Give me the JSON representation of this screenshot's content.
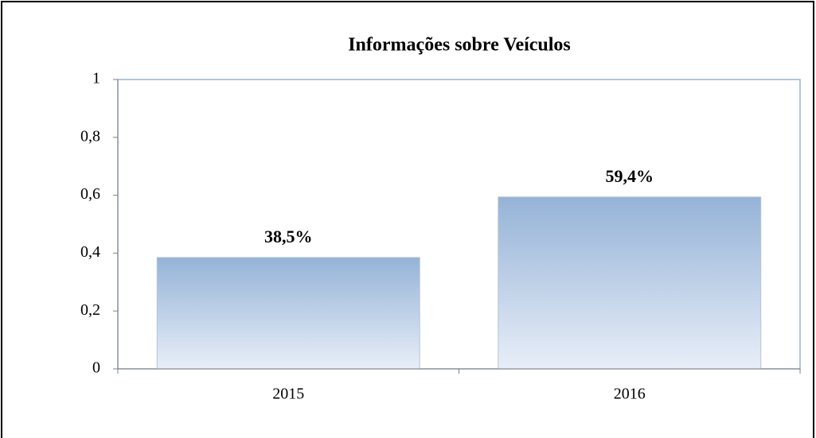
{
  "chart_data": {
    "type": "bar",
    "title": "Informações sobre Veículos",
    "categories": [
      "2015",
      "2016"
    ],
    "values": [
      0.385,
      0.594
    ],
    "value_labels": [
      "38,5%",
      "59,4%"
    ],
    "color": "#95b3d7",
    "ylim": [
      0,
      1
    ],
    "yticks": [
      0,
      {
        "value": 0.2,
        "label": "0,2"
      },
      {
        "value": 0.4,
        "label": "0,4"
      },
      {
        "value": 0.6,
        "label": "0,6"
      },
      {
        "value": 0.8,
        "label": "0,8"
      },
      1
    ],
    "grid": false
  }
}
